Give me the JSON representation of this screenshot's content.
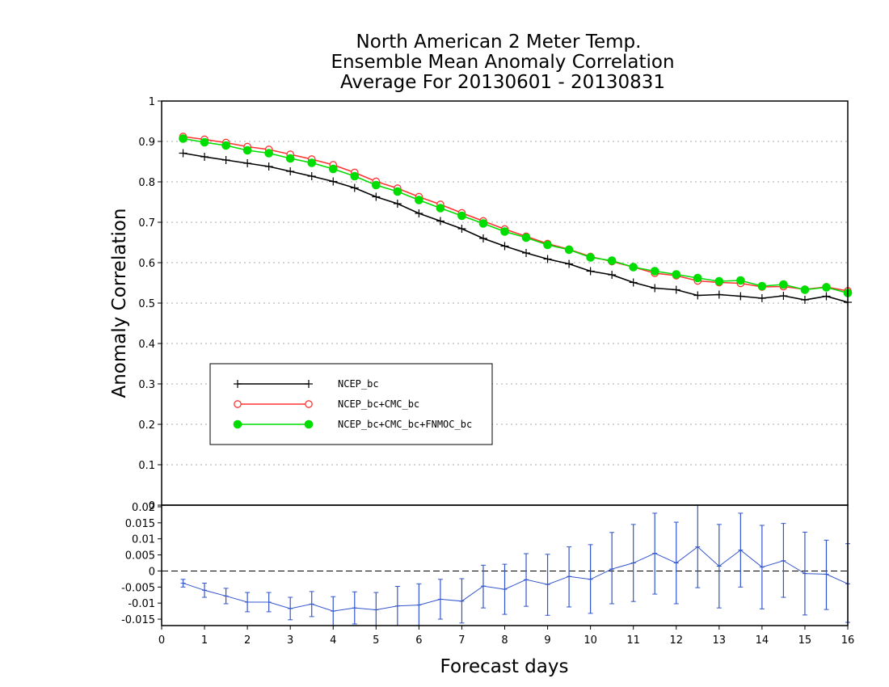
{
  "chart_data": [
    {
      "type": "line",
      "title": [
        "North American 2 Meter Temp.",
        "Ensemble Mean Anomaly Correlation",
        "Average For 20130601 - 20130831"
      ],
      "ylabel": "Anomaly Correlation",
      "ylim": [
        0,
        1
      ],
      "yticks": [
        "0",
        "0.1",
        "0.2",
        "0.3",
        "0.4",
        "0.5",
        "0.6",
        "0.7",
        "0.8",
        "0.9",
        "1"
      ],
      "xlim": [
        0,
        16
      ],
      "grid": true,
      "legend_position": "lower-left",
      "x": [
        0.5,
        1,
        1.5,
        2,
        2.5,
        3,
        3.5,
        4,
        4.5,
        5,
        5.5,
        6,
        6.5,
        7,
        7.5,
        8,
        8.5,
        9,
        9.5,
        10,
        10.5,
        11,
        11.5,
        12,
        12.5,
        13,
        13.5,
        14,
        14.5,
        15,
        15.5,
        16
      ],
      "series": [
        {
          "name": "NCEP_bc",
          "color": "#000000",
          "marker": "plus",
          "values": [
            0.871,
            0.862,
            0.854,
            0.846,
            0.838,
            0.826,
            0.814,
            0.801,
            0.785,
            0.763,
            0.746,
            0.722,
            0.703,
            0.684,
            0.66,
            0.641,
            0.624,
            0.609,
            0.597,
            0.579,
            0.57,
            0.551,
            0.537,
            0.533,
            0.519,
            0.521,
            0.517,
            0.512,
            0.518,
            0.508,
            0.517,
            0.502
          ]
        },
        {
          "name": "NCEP_bc+CMC_bc",
          "color": "#ff3333",
          "marker": "open-circle",
          "values": [
            0.912,
            0.905,
            0.897,
            0.887,
            0.88,
            0.868,
            0.856,
            0.842,
            0.823,
            0.801,
            0.784,
            0.763,
            0.744,
            0.723,
            0.703,
            0.683,
            0.665,
            0.647,
            0.633,
            0.615,
            0.603,
            0.589,
            0.574,
            0.568,
            0.555,
            0.551,
            0.549,
            0.54,
            0.541,
            0.534,
            0.54,
            0.53
          ]
        },
        {
          "name": "NCEP_bc+CMC_bc+FNMOC_bc",
          "color": "#00dd00",
          "marker": "filled-circle",
          "values": [
            0.907,
            0.898,
            0.89,
            0.878,
            0.871,
            0.858,
            0.847,
            0.832,
            0.814,
            0.792,
            0.776,
            0.755,
            0.735,
            0.716,
            0.697,
            0.677,
            0.662,
            0.644,
            0.632,
            0.613,
            0.605,
            0.589,
            0.579,
            0.571,
            0.562,
            0.554,
            0.556,
            0.542,
            0.546,
            0.533,
            0.539,
            0.525
          ]
        }
      ]
    },
    {
      "type": "line",
      "subtype": "difference-with-error-bars",
      "xlabel": "Forecast days",
      "xlim": [
        0,
        16
      ],
      "xticks": [
        "0",
        "1",
        "2",
        "3",
        "4",
        "5",
        "6",
        "7",
        "8",
        "9",
        "10",
        "11",
        "12",
        "13",
        "14",
        "15",
        "16"
      ],
      "ylim": [
        -0.017,
        0.0205
      ],
      "yticks": [
        "-0.015",
        "-0.01",
        "-0.005",
        "0",
        "0.005",
        "0.01",
        "0.015",
        "0.02"
      ],
      "zero_line": "dashed",
      "x": [
        0.5,
        1,
        1.5,
        2,
        2.5,
        3,
        3.5,
        4,
        4.5,
        5,
        5.5,
        6,
        6.5,
        7,
        7.5,
        8,
        8.5,
        9,
        9.5,
        10,
        10.5,
        11,
        11.5,
        12,
        12.5,
        13,
        13.5,
        14,
        14.5,
        15,
        15.5,
        16
      ],
      "series": [
        {
          "color": "#3355cc",
          "values": [
            -0.0038,
            -0.006,
            -0.0078,
            -0.0097,
            -0.0097,
            -0.0117,
            -0.0103,
            -0.0125,
            -0.0115,
            -0.0121,
            -0.0109,
            -0.0106,
            -0.0088,
            -0.0094,
            -0.0047,
            -0.0057,
            -0.0027,
            -0.0042,
            -0.0017,
            -0.0026,
            0.0006,
            0.0025,
            0.0055,
            0.0025,
            0.0075,
            0.0015,
            0.0065,
            0.0012,
            0.0032,
            -0.0008,
            -0.001,
            -0.004
          ],
          "error_low": [
            -0.005,
            -0.0082,
            -0.0102,
            -0.0127,
            -0.0127,
            -0.0152,
            -0.0142,
            -0.017,
            -0.0165,
            -0.0175,
            -0.017,
            -0.0172,
            -0.015,
            -0.0162,
            -0.0115,
            -0.0135,
            -0.011,
            -0.0138,
            -0.0112,
            -0.0132,
            -0.0102,
            -0.0095,
            -0.0072,
            -0.0102,
            -0.0052,
            -0.0115,
            -0.005,
            -0.0118,
            -0.0082,
            -0.0137,
            -0.012,
            -0.016
          ],
          "error_high": [
            -0.0026,
            -0.0038,
            -0.0054,
            -0.0067,
            -0.0067,
            -0.0082,
            -0.0064,
            -0.008,
            -0.0065,
            -0.0067,
            -0.0048,
            -0.004,
            -0.0026,
            -0.0024,
            0.0018,
            0.0021,
            0.0054,
            0.0052,
            0.0075,
            0.0082,
            0.012,
            0.0145,
            0.018,
            0.0152,
            0.0205,
            0.0145,
            0.018,
            0.0142,
            0.0148,
            0.0121,
            0.0096,
            0.0085
          ]
        }
      ]
    }
  ]
}
